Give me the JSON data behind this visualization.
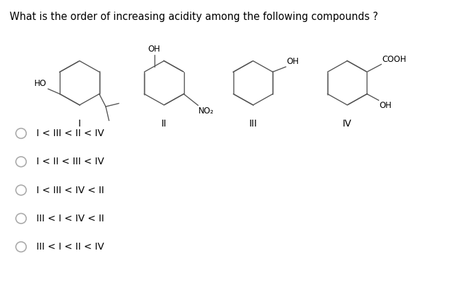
{
  "title": "What is the order of increasing acidity among the following compounds ?",
  "title_fontsize": 10.5,
  "background_color": "#ffffff",
  "text_color": "#000000",
  "line_color": "#555555",
  "options": [
    "I < III < II < IV",
    "I < II < III < IV",
    "I < III < IV < II",
    "III < I < IV < II",
    "III < I < II < IV"
  ],
  "radio_circle_color": "#aaaaaa",
  "option_fontsize": 10,
  "label_fontsize": 9.5,
  "struct_fontsize": 8.5,
  "compound_label_fontsize": 10
}
